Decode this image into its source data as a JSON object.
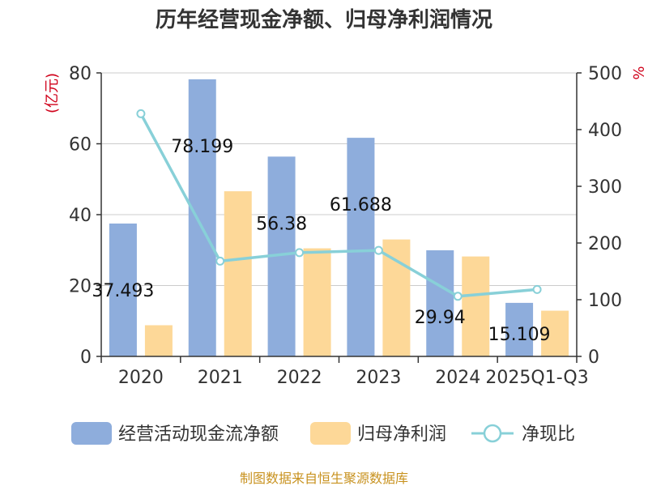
{
  "chart_data": {
    "type": "bar",
    "title": "历年经营现金净额、归母净利润情况",
    "categories": [
      "2020",
      "2021",
      "2022",
      "2023",
      "2024",
      "2025Q1-Q3"
    ],
    "series": [
      {
        "name": "经营活动现金流净额",
        "type": "bar",
        "axis": "left",
        "color": "#8eaddc",
        "values": [
          37.493,
          78.199,
          56.38,
          61.688,
          29.94,
          15.109
        ],
        "labels": [
          "37.493",
          "78.199",
          "56.38",
          "61.688",
          "29.94",
          "15.109"
        ]
      },
      {
        "name": "归母净利润",
        "type": "bar",
        "axis": "left",
        "color": "#fdd898",
        "values": [
          8.8,
          46.6,
          30.5,
          33.0,
          28.2,
          12.9
        ]
      },
      {
        "name": "净现比",
        "type": "line",
        "axis": "right",
        "color": "#88d0d8",
        "values": [
          428,
          168,
          183,
          187,
          106,
          118
        ]
      }
    ],
    "y_left": {
      "unit": "(亿元)",
      "min": 0,
      "max": 80,
      "ticks": [
        "0",
        "20",
        "40",
        "60",
        "80"
      ]
    },
    "y_right": {
      "unit": "%",
      "min": 0,
      "max": 500,
      "ticks": [
        "0",
        "100",
        "200",
        "300",
        "400",
        "500"
      ]
    },
    "grid": true,
    "legend": "bottom"
  },
  "source": "制图数据来自恒生聚源数据库"
}
